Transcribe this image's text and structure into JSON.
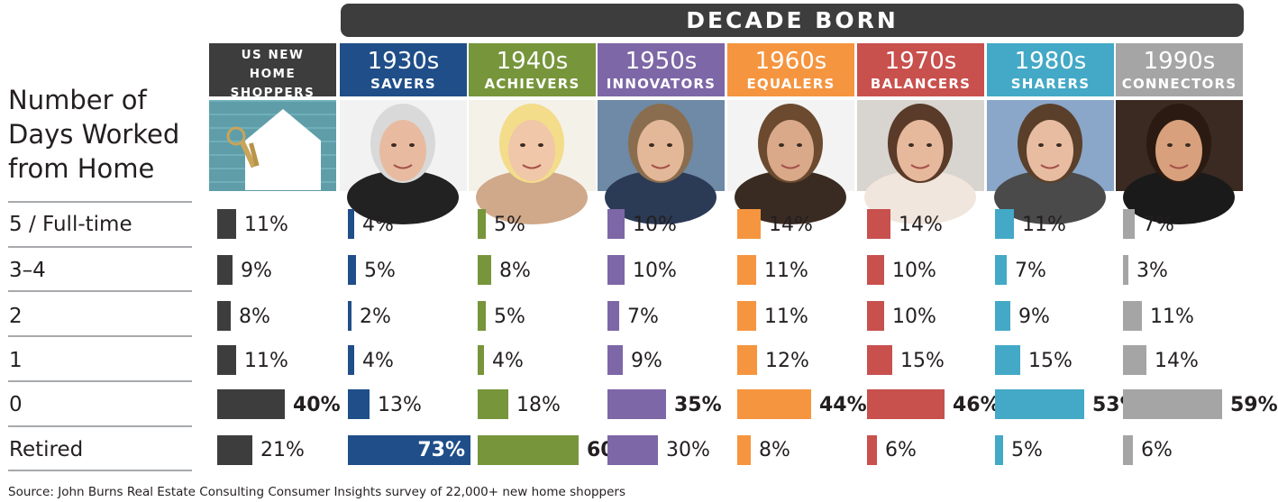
{
  "banner": "DECADE BORN",
  "row_title": [
    "Number of",
    "Days Worked",
    "from Home"
  ],
  "source": "Source: John Burns Real Estate Consulting Consumer Insights survey of 22,000+ new home shoppers",
  "chart_data": {
    "type": "bar",
    "title": "",
    "categories": [
      "5 / Full-time",
      "3–4",
      "2",
      "1",
      "0",
      "Retired"
    ],
    "xlim": [
      0,
      100
    ],
    "unit": "%",
    "series": [
      {
        "name": "US NEW HOME SHOPPERS",
        "title_lines": [
          "US NEW",
          "HOME",
          "SHOPPERS"
        ],
        "decade": "",
        "generation": "",
        "color": "#3d3d3d",
        "photo": "house-key-photo",
        "values": [
          11,
          9,
          8,
          11,
          40,
          21
        ]
      },
      {
        "name": "1930s SAVERS",
        "decade": "1930s",
        "generation": "SAVERS",
        "color": "#1f4e89",
        "photo": "warren-buffett-photo",
        "values": [
          4,
          5,
          2,
          4,
          13,
          73
        ]
      },
      {
        "name": "1940s ACHIEVERS",
        "decade": "1940s",
        "generation": "ACHIEVERS",
        "color": "#77953b",
        "photo": "dolly-parton-photo",
        "values": [
          5,
          8,
          5,
          4,
          18,
          60
        ]
      },
      {
        "name": "1950s INNOVATORS",
        "decade": "1950s",
        "generation": "INNOVATORS",
        "color": "#7d67a6",
        "photo": "bill-gates-photo",
        "values": [
          10,
          10,
          7,
          9,
          35,
          30
        ]
      },
      {
        "name": "1960s EQUALERS",
        "decade": "1960s",
        "generation": "EQUALERS",
        "color": "#f5953f",
        "photo": "sarah-jessica-parker-photo",
        "values": [
          14,
          11,
          11,
          12,
          44,
          8
        ]
      },
      {
        "name": "1970s BALANCERS",
        "decade": "1970s",
        "generation": "BALANCERS",
        "color": "#c8504d",
        "photo": "jennifer-garner-photo",
        "values": [
          14,
          10,
          10,
          15,
          46,
          6
        ]
      },
      {
        "name": "1980s SHARERS",
        "decade": "1980s",
        "generation": "SHARERS",
        "color": "#43a9c6",
        "photo": "mark-zuckerberg-photo",
        "values": [
          11,
          7,
          9,
          15,
          53,
          5
        ]
      },
      {
        "name": "1990s CONNECTORS",
        "decade": "1990s",
        "generation": "CONNECTORS",
        "color": "#a5a5a5",
        "photo": "selena-gomez-photo",
        "values": [
          7,
          3,
          11,
          14,
          59,
          6
        ]
      }
    ],
    "bold_labels": [
      [
        4
      ],
      [
        5
      ],
      [
        5
      ],
      [
        4
      ],
      [
        4
      ],
      [
        4
      ],
      [
        4
      ],
      [
        4
      ]
    ],
    "grid": false,
    "legend": "none"
  }
}
